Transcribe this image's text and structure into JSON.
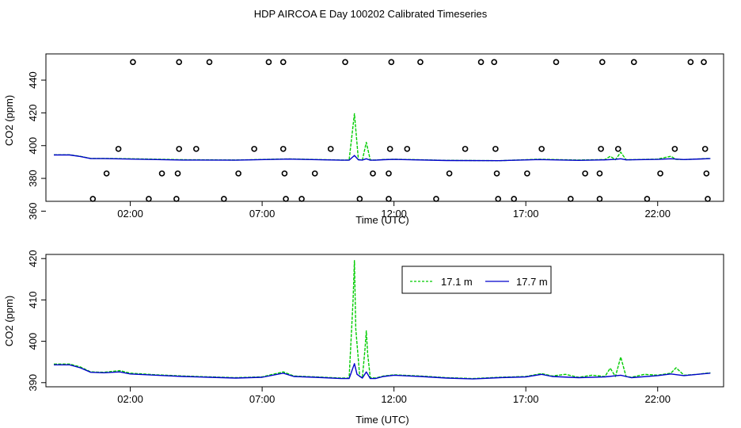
{
  "figure": {
    "title": "HDP AIRCOA E  Day 100202  Calibrated Timeseries"
  },
  "colors": {
    "series_171": "#00cc00",
    "series_177": "#0000cc",
    "axis": "#000000",
    "markers": "#000000"
  },
  "chart_data": [
    {
      "type": "scatter+line",
      "title": "",
      "xlabel": "Time (UTC)",
      "ylabel": "CO2 (ppm)",
      "xlim_hours": [
        -1.2,
        24.5
      ],
      "ylim": [
        366,
        456
      ],
      "x_ticks": [
        {
          "hour": 2,
          "label": "02:00"
        },
        {
          "hour": 7,
          "label": "07:00"
        },
        {
          "hour": 12,
          "label": "12:00"
        },
        {
          "hour": 17,
          "label": "17:00"
        },
        {
          "hour": 22,
          "label": "22:00"
        }
      ],
      "y_ticks": [
        {
          "value": 360,
          "label": "360"
        },
        {
          "value": 380,
          "label": "380"
        },
        {
          "value": 400,
          "label": "400"
        },
        {
          "value": 420,
          "label": "420"
        },
        {
          "value": 440,
          "label": "440"
        }
      ],
      "calibration_points": [
        {
          "hour": 0.58,
          "value": 367.5
        },
        {
          "hour": 1.1,
          "value": 383
        },
        {
          "hour": 1.55,
          "value": 398
        },
        {
          "hour": 2.1,
          "value": 451
        },
        {
          "hour": 2.7,
          "value": 367.5
        },
        {
          "hour": 3.2,
          "value": 383
        },
        {
          "hour": 3.75,
          "value": 367.5
        },
        {
          "hour": 3.8,
          "value": 383
        },
        {
          "hour": 3.85,
          "value": 398
        },
        {
          "hour": 3.85,
          "value": 451
        },
        {
          "hour": 4.5,
          "value": 398
        },
        {
          "hour": 5.0,
          "value": 451
        },
        {
          "hour": 5.55,
          "value": 367.5
        },
        {
          "hour": 6.1,
          "value": 383
        },
        {
          "hour": 6.7,
          "value": 398
        },
        {
          "hour": 7.25,
          "value": 451
        },
        {
          "hour": 7.8,
          "value": 451
        },
        {
          "hour": 7.8,
          "value": 398
        },
        {
          "hour": 7.85,
          "value": 383
        },
        {
          "hour": 7.9,
          "value": 367.5
        },
        {
          "hour": 8.5,
          "value": 367.5
        },
        {
          "hour": 9.0,
          "value": 383
        },
        {
          "hour": 9.6,
          "value": 398
        },
        {
          "hour": 10.15,
          "value": 451
        },
        {
          "hour": 10.7,
          "value": 367.5
        },
        {
          "hour": 11.2,
          "value": 383
        },
        {
          "hour": 11.8,
          "value": 383
        },
        {
          "hour": 11.8,
          "value": 367.5
        },
        {
          "hour": 11.85,
          "value": 398
        },
        {
          "hour": 11.9,
          "value": 451
        },
        {
          "hour": 12.5,
          "value": 398
        },
        {
          "hour": 13.0,
          "value": 451
        },
        {
          "hour": 13.6,
          "value": 367.5
        },
        {
          "hour": 14.1,
          "value": 383
        },
        {
          "hour": 14.7,
          "value": 398
        },
        {
          "hour": 15.3,
          "value": 451
        },
        {
          "hour": 15.8,
          "value": 451
        },
        {
          "hour": 15.85,
          "value": 398
        },
        {
          "hour": 15.9,
          "value": 383
        },
        {
          "hour": 15.95,
          "value": 367.5
        },
        {
          "hour": 16.55,
          "value": 367.5
        },
        {
          "hour": 17.05,
          "value": 383
        },
        {
          "hour": 17.6,
          "value": 398
        },
        {
          "hour": 18.15,
          "value": 451
        },
        {
          "hour": 18.7,
          "value": 367.5
        },
        {
          "hour": 19.25,
          "value": 383
        },
        {
          "hour": 19.8,
          "value": 383
        },
        {
          "hour": 19.8,
          "value": 367.5
        },
        {
          "hour": 19.85,
          "value": 398
        },
        {
          "hour": 19.9,
          "value": 451
        },
        {
          "hour": 20.5,
          "value": 398
        },
        {
          "hour": 21.1,
          "value": 451
        },
        {
          "hour": 21.6,
          "value": 367.5
        },
        {
          "hour": 22.1,
          "value": 383
        },
        {
          "hour": 22.65,
          "value": 398
        },
        {
          "hour": 23.25,
          "value": 451
        },
        {
          "hour": 23.75,
          "value": 451
        },
        {
          "hour": 23.8,
          "value": 398
        },
        {
          "hour": 23.85,
          "value": 383
        },
        {
          "hour": 23.9,
          "value": 367.5
        }
      ],
      "series": [
        {
          "key": "s171",
          "color": "#00cc00",
          "x": [
            -0.9,
            -0.3,
            0.1,
            0.5,
            1.0,
            2.0,
            4.0,
            6.0,
            8.0,
            10.0,
            10.3,
            10.5,
            10.65,
            10.8,
            10.95,
            11.1,
            11.3,
            11.6,
            12.0,
            14.0,
            16.0,
            17.5,
            19.0,
            20.0,
            20.2,
            20.4,
            20.6,
            20.8,
            21.0,
            22.0,
            22.5,
            22.7,
            23.0,
            24.0
          ],
          "y": [
            394.4,
            394.4,
            393.5,
            392.2,
            392.2,
            392.0,
            391.4,
            391.2,
            391.9,
            391.2,
            391.2,
            419.5,
            391.5,
            391.2,
            402,
            391.2,
            391.2,
            391.5,
            391.7,
            391.0,
            390.8,
            391.7,
            391.2,
            391.5,
            393.5,
            391.4,
            396,
            391.4,
            391.4,
            391.8,
            393.5,
            391.6,
            391.5,
            392.2
          ]
        },
        {
          "key": "s177",
          "color": "#0000cc",
          "x": [
            -0.9,
            -0.3,
            0.1,
            0.5,
            1.0,
            2.0,
            4.0,
            6.0,
            8.0,
            10.0,
            10.3,
            10.5,
            10.65,
            10.8,
            10.95,
            11.1,
            11.3,
            11.6,
            12.0,
            14.0,
            16.0,
            17.5,
            19.0,
            20.0,
            20.4,
            20.6,
            20.8,
            22.0,
            22.5,
            23.0,
            24.0
          ],
          "y": [
            394.3,
            394.3,
            393.4,
            392.1,
            392.1,
            391.8,
            391.2,
            391.1,
            391.8,
            391.1,
            391.1,
            394.0,
            391.3,
            391.2,
            392.0,
            391.1,
            391.1,
            391.4,
            391.6,
            390.9,
            390.8,
            391.5,
            391.0,
            391.3,
            391.6,
            392.0,
            391.3,
            391.6,
            392.0,
            391.5,
            392.1
          ]
        }
      ]
    },
    {
      "type": "line",
      "title": "",
      "xlabel": "Time (UTC)",
      "ylabel": "CO2 (ppm)",
      "xlim_hours": [
        -1.2,
        24.5
      ],
      "ylim": [
        389,
        421
      ],
      "x_ticks": [
        {
          "hour": 2,
          "label": "02:00"
        },
        {
          "hour": 7,
          "label": "07:00"
        },
        {
          "hour": 12,
          "label": "12:00"
        },
        {
          "hour": 17,
          "label": "17:00"
        },
        {
          "hour": 22,
          "label": "22:00"
        }
      ],
      "y_ticks": [
        {
          "value": 390,
          "label": "390"
        },
        {
          "value": 400,
          "label": "400"
        },
        {
          "value": 410,
          "label": "410"
        },
        {
          "value": 420,
          "label": "420"
        }
      ],
      "legend": {
        "position": "top-center",
        "entries": [
          {
            "label": "17.1 m",
            "color": "#00cc00"
          },
          {
            "label": "17.7 m",
            "color": "#0000cc"
          }
        ]
      },
      "series": [
        {
          "key": "s171",
          "name": "17.1 m",
          "color": "#00cc00",
          "x": [
            -0.9,
            -0.3,
            0.1,
            0.5,
            1.0,
            1.6,
            2.0,
            3.0,
            4.0,
            5.0,
            6.0,
            7.0,
            7.8,
            8.2,
            9.0,
            10.0,
            10.3,
            10.45,
            10.5,
            10.55,
            10.7,
            10.8,
            10.9,
            10.95,
            11.0,
            11.1,
            11.3,
            11.6,
            12.0,
            13.0,
            14.0,
            15.0,
            16.0,
            17.0,
            17.6,
            18.0,
            18.5,
            19.0,
            19.5,
            20.0,
            20.2,
            20.4,
            20.6,
            20.8,
            21.0,
            21.5,
            22.0,
            22.5,
            22.7,
            23.0,
            23.5,
            24.0
          ],
          "y": [
            394.5,
            394.5,
            393.8,
            392.6,
            392.5,
            392.9,
            392.3,
            391.9,
            391.6,
            391.4,
            391.2,
            391.4,
            392.6,
            391.6,
            391.4,
            391.1,
            391.1,
            410,
            419.5,
            403,
            391.5,
            391.2,
            398,
            402.5,
            397,
            391.2,
            391.1,
            391.6,
            391.9,
            391.6,
            391.2,
            391.0,
            391.3,
            391.5,
            392.2,
            391.6,
            392.0,
            391.3,
            391.8,
            391.5,
            393.5,
            391.5,
            396.2,
            391.5,
            391.3,
            392.0,
            391.8,
            392.3,
            393.6,
            391.8,
            392.0,
            392.4
          ]
        },
        {
          "key": "s177",
          "name": "17.7 m",
          "color": "#0000cc",
          "x": [
            -0.9,
            -0.3,
            0.1,
            0.5,
            1.0,
            1.6,
            2.0,
            3.0,
            4.0,
            5.0,
            6.0,
            7.0,
            7.8,
            8.2,
            9.0,
            10.0,
            10.3,
            10.5,
            10.6,
            10.8,
            10.95,
            11.1,
            11.3,
            11.6,
            12.0,
            13.0,
            14.0,
            15.0,
            16.0,
            17.0,
            17.6,
            18.0,
            19.0,
            20.0,
            20.6,
            21.0,
            22.0,
            22.5,
            23.0,
            24.0
          ],
          "y": [
            394.3,
            394.3,
            393.6,
            392.5,
            392.4,
            392.6,
            392.1,
            391.8,
            391.5,
            391.3,
            391.1,
            391.3,
            392.3,
            391.5,
            391.3,
            391.0,
            391.0,
            394.6,
            392.0,
            391.1,
            392.6,
            391.0,
            391.0,
            391.5,
            391.8,
            391.5,
            391.1,
            390.9,
            391.2,
            391.4,
            392.0,
            391.5,
            391.2,
            391.4,
            391.8,
            391.2,
            391.7,
            392.1,
            391.7,
            392.3
          ]
        }
      ]
    }
  ]
}
